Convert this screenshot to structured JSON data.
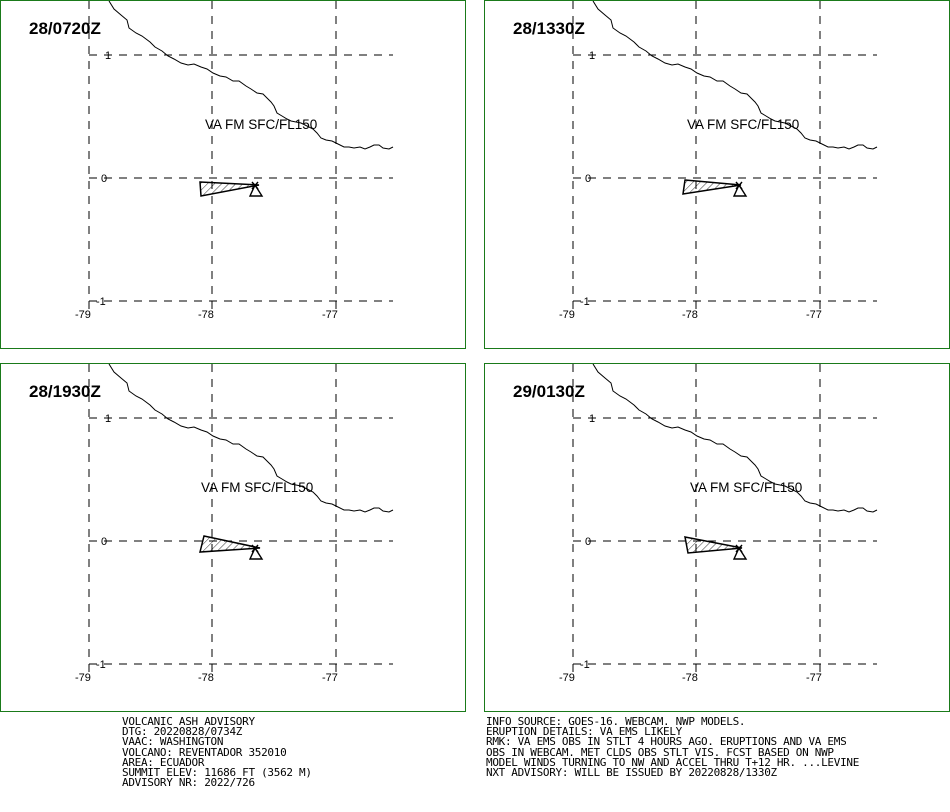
{
  "panels": [
    {
      "time": "28/0720Z",
      "label": "VA FM SFC/FL150"
    },
    {
      "time": "28/1330Z",
      "label": "VA FM SFC/FL150"
    },
    {
      "time": "28/1930Z",
      "label": "VA FM SFC/FL150"
    },
    {
      "time": "29/0130Z",
      "label": "VA FM SFC/FL150"
    }
  ],
  "axes": {
    "lon_ticks": [
      "-79",
      "-78",
      "-77"
    ],
    "lat_ticks": [
      "1",
      "0",
      "-1"
    ],
    "lon_range": [
      -79,
      -76.5
    ],
    "lat_range": [
      -1,
      1.4
    ]
  },
  "advisory_left": [
    "VOLCANIC ASH ADVISORY",
    "DTG: 20220828/0734Z",
    "VAAC: WASHINGTON",
    "VOLCANO: REVENTADOR 352010",
    "AREA: ECUADOR",
    "SUMMIT ELEV: 11686 FT (3562 M)",
    "ADVISORY NR: 2022/726"
  ],
  "advisory_right": [
    "INFO SOURCE: GOES-16. WEBCAM. NWP MODELS.",
    "ERUPTION DETAILS: VA EMS LIKELY",
    "RMK: VA EMS OBS IN STLT 4 HOURS AGO. ERUPTIONS AND VA EMS",
    "OBS IN WEBCAM. MET CLDS OBS STLT VIS. FCST BASED ON NWP",
    "MODEL WINDS TURNING TO NW AND ACCEL THRU T+12 HR. ...LEVINE",
    "NXT ADVISORY: WILL BE ISSUED BY 20220828/1330Z"
  ],
  "colors": {
    "panel_border": "#1a7a1a",
    "ash_hatch": "#000000"
  }
}
